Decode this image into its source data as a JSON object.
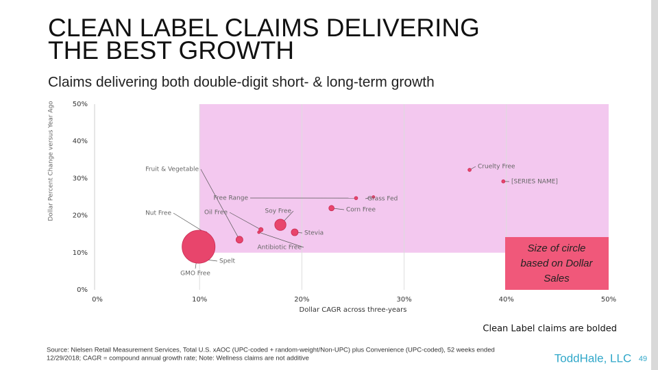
{
  "title_line1": "CLEAN LABEL CLAIMS DELIVERING",
  "title_line2": "THE BEST GROWTH",
  "subtitle": "Claims delivering both double-digit short- & long-term growth",
  "callout": [
    "Size of circle",
    "based on Dollar",
    "Sales"
  ],
  "note": "Clean Label claims are bolded",
  "source_line1": "Source: Nielsen Retail Measurement Services, Total U.S. xAOC (UPC-coded + random-weight/Non-UPC) plus Convenience (UPC-coded), 52 weeks ended",
  "source_line2": "12/29/2018; CAGR = compound annual growth rate; Note: Wellness claims are not additive",
  "logo": "ToddHale, LLC",
  "page_number": "49",
  "chart_data": {
    "type": "bubble",
    "x_label": "Dollar CAGR across three-years",
    "y_label": "Dollar Percent Change versus Year Ago",
    "labels": [
      "Cruelty Free",
      "[SERIES NAME]",
      "Fruit & Vegetable",
      "Free Range",
      "Grass Fed",
      "Corn Free",
      "Soy Free",
      "Stevia",
      "Oil Free",
      "Nut Free",
      "Antibiotic Free",
      "Spelt",
      "GMO Free"
    ],
    "x": [
      36.4,
      39.7,
      13.9,
      25.3,
      27,
      22.9,
      17.9,
      19.3,
      16.0,
      10.6,
      15.8,
      10.1,
      9.9
    ],
    "values": [
      32.3,
      29.2,
      13.5,
      24.7,
      25,
      22.0,
      17.5,
      15.5,
      16.2,
      15.3,
      15.5,
      8.3,
      11.6
    ],
    "sizes": [
      0.3,
      0.3,
      1.3,
      0.3,
      0.2,
      0.8,
      3.5,
      1.3,
      0.5,
      0.2,
      0.2,
      0.2,
      30
    ],
    "color": "#e8456c",
    "highlight": {
      "x": [
        10,
        50
      ],
      "y": [
        10,
        50
      ],
      "color": "#f3c8ef"
    },
    "xlim": [
      0,
      50
    ],
    "ylim": [
      0,
      50
    ],
    "xticks": [
      {
        "value": 0,
        "label": "0%"
      },
      {
        "value": 10,
        "label": "10%"
      },
      {
        "value": 20,
        "label": "20%"
      },
      {
        "value": 30,
        "label": "30%"
      },
      {
        "value": 40,
        "label": "40%"
      },
      {
        "value": 50,
        "label": "50%"
      }
    ],
    "yticks": [
      {
        "value": 0,
        "label": "0%"
      },
      {
        "value": 10,
        "label": "10%"
      },
      {
        "value": 20,
        "label": "20%"
      },
      {
        "value": 30,
        "label": "30%"
      },
      {
        "value": 40,
        "label": "40%"
      },
      {
        "value": 50,
        "label": "50%"
      }
    ],
    "grid": true
  }
}
